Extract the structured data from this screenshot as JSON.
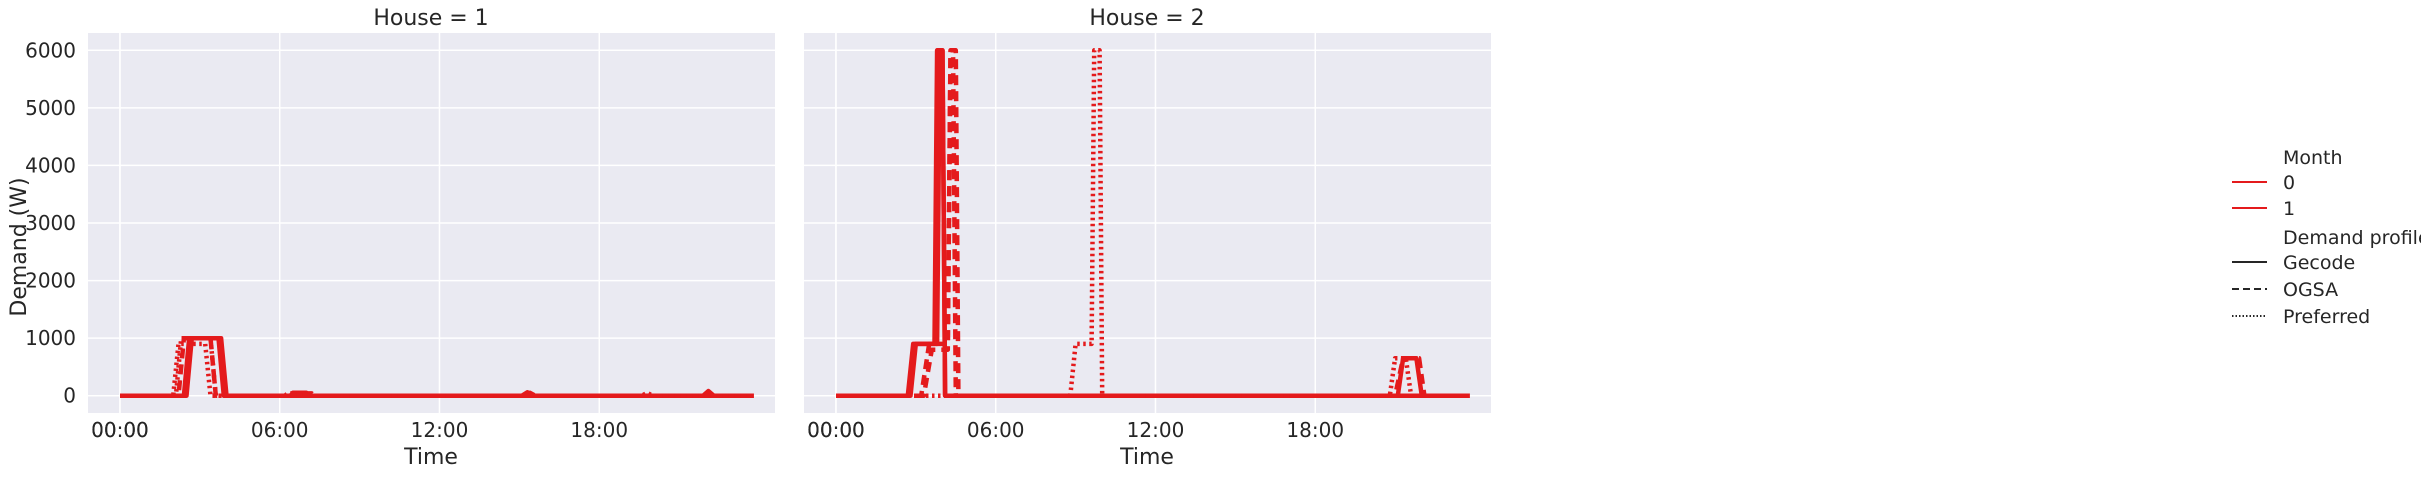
{
  "colors": {
    "red": "#e41a1c",
    "legend_black": "#262626"
  },
  "chart_data": {
    "type": "line",
    "ylabel": "Demand (W)",
    "xlabel": "Time",
    "ylim": [
      -300,
      6300
    ],
    "yticks": [
      "0",
      "1000",
      "2000",
      "3000",
      "4000",
      "5000",
      "6000"
    ],
    "ytick_values": [
      0,
      1000,
      2000,
      3000,
      4000,
      5000,
      6000
    ],
    "xticks": [
      "00:00",
      "00:00",
      "06:00",
      "12:00",
      "18:00"
    ],
    "xtick_values": [
      0,
      0,
      6,
      12,
      18
    ],
    "xlim": [
      -1.2,
      24.6
    ],
    "grid": true,
    "legend": {
      "placement": "right",
      "hue_title": "Month",
      "hue_entries": [
        "0",
        "1"
      ],
      "style_title": "Demand profile",
      "style_entries": [
        "Gecode",
        "OGSA",
        "Preferred"
      ]
    },
    "panels": [
      {
        "title": "House = 1",
        "series": [
          {
            "month": "0",
            "profile": "Gecode",
            "points": [
              [
                0,
                0
              ],
              [
                2.4,
                0
              ],
              [
                2.6,
                1000
              ],
              [
                3.8,
                1000
              ],
              [
                4.0,
                0
              ],
              [
                6.4,
                0
              ],
              [
                6.5,
                50
              ],
              [
                7.0,
                50
              ],
              [
                7.1,
                0
              ],
              [
                15.1,
                0
              ],
              [
                15.3,
                60
              ],
              [
                15.5,
                0
              ],
              [
                21.9,
                0
              ],
              [
                22.1,
                80
              ],
              [
                22.3,
                0
              ],
              [
                23.8,
                0
              ]
            ]
          },
          {
            "month": "1",
            "profile": "Gecode",
            "points": [
              [
                0,
                0
              ],
              [
                2.5,
                0
              ],
              [
                2.7,
                1000
              ],
              [
                3.7,
                1000
              ],
              [
                3.9,
                0
              ],
              [
                23.8,
                0
              ]
            ]
          },
          {
            "month": "0",
            "profile": "OGSA",
            "points": [
              [
                0,
                0
              ],
              [
                2.2,
                0
              ],
              [
                2.4,
                1000
              ],
              [
                3.4,
                1000
              ],
              [
                3.6,
                0
              ],
              [
                6.6,
                0
              ],
              [
                6.7,
                40
              ],
              [
                7.2,
                40
              ],
              [
                7.3,
                0
              ],
              [
                15.2,
                0
              ],
              [
                15.4,
                50
              ],
              [
                15.6,
                0
              ],
              [
                23.8,
                0
              ]
            ]
          },
          {
            "month": "0",
            "profile": "Preferred",
            "points": [
              [
                0,
                0
              ],
              [
                2.1,
                0
              ],
              [
                2.3,
                1000
              ],
              [
                3.4,
                1000
              ],
              [
                3.6,
                0
              ],
              [
                6.2,
                0
              ],
              [
                6.3,
                40
              ],
              [
                6.9,
                40
              ],
              [
                7.0,
                0
              ],
              [
                19.6,
                0
              ],
              [
                19.8,
                50
              ],
              [
                20.0,
                0
              ],
              [
                23.8,
                0
              ]
            ]
          },
          {
            "month": "1",
            "profile": "Preferred",
            "points": [
              [
                0,
                0
              ],
              [
                2.0,
                0
              ],
              [
                2.2,
                900
              ],
              [
                3.2,
                900
              ],
              [
                3.4,
                0
              ],
              [
                23.8,
                0
              ]
            ]
          }
        ]
      },
      {
        "title": "House = 2",
        "series": [
          {
            "month": "0",
            "profile": "Gecode",
            "points": [
              [
                0,
                0
              ],
              [
                2.7,
                0
              ],
              [
                2.9,
                900
              ],
              [
                3.7,
                900
              ],
              [
                3.8,
                6000
              ],
              [
                4.0,
                6000
              ],
              [
                4.1,
                0
              ],
              [
                21.1,
                0
              ],
              [
                21.3,
                650
              ],
              [
                21.8,
                650
              ],
              [
                22.0,
                0
              ],
              [
                23.8,
                0
              ]
            ]
          },
          {
            "month": "1",
            "profile": "Gecode",
            "points": [
              [
                0,
                0
              ],
              [
                2.8,
                0
              ],
              [
                3.0,
                900
              ],
              [
                3.8,
                900
              ],
              [
                3.9,
                6000
              ],
              [
                4.0,
                6000
              ],
              [
                4.1,
                0
              ],
              [
                23.8,
                0
              ]
            ]
          },
          {
            "month": "0",
            "profile": "OGSA",
            "points": [
              [
                0,
                0
              ],
              [
                3.2,
                0
              ],
              [
                3.5,
                900
              ],
              [
                4.2,
                900
              ],
              [
                4.3,
                6000
              ],
              [
                4.5,
                6000
              ],
              [
                4.6,
                0
              ],
              [
                23.8,
                0
              ]
            ]
          },
          {
            "month": "1",
            "profile": "OGSA",
            "points": [
              [
                0,
                0
              ],
              [
                3.3,
                0
              ],
              [
                3.6,
                800
              ],
              [
                4.2,
                800
              ],
              [
                4.3,
                5900
              ],
              [
                4.4,
                5900
              ],
              [
                4.5,
                0
              ],
              [
                21.0,
                0
              ],
              [
                21.3,
                650
              ],
              [
                21.9,
                650
              ],
              [
                22.1,
                0
              ],
              [
                23.8,
                0
              ]
            ]
          },
          {
            "month": "0",
            "profile": "Preferred",
            "points": [
              [
                0,
                0
              ],
              [
                8.8,
                0
              ],
              [
                9.0,
                900
              ],
              [
                9.6,
                900
              ],
              [
                9.7,
                6000
              ],
              [
                9.9,
                6000
              ],
              [
                10.0,
                0
              ],
              [
                20.8,
                0
              ],
              [
                21.0,
                650
              ],
              [
                21.4,
                650
              ],
              [
                21.6,
                0
              ],
              [
                23.8,
                0
              ]
            ]
          }
        ]
      }
    ]
  }
}
